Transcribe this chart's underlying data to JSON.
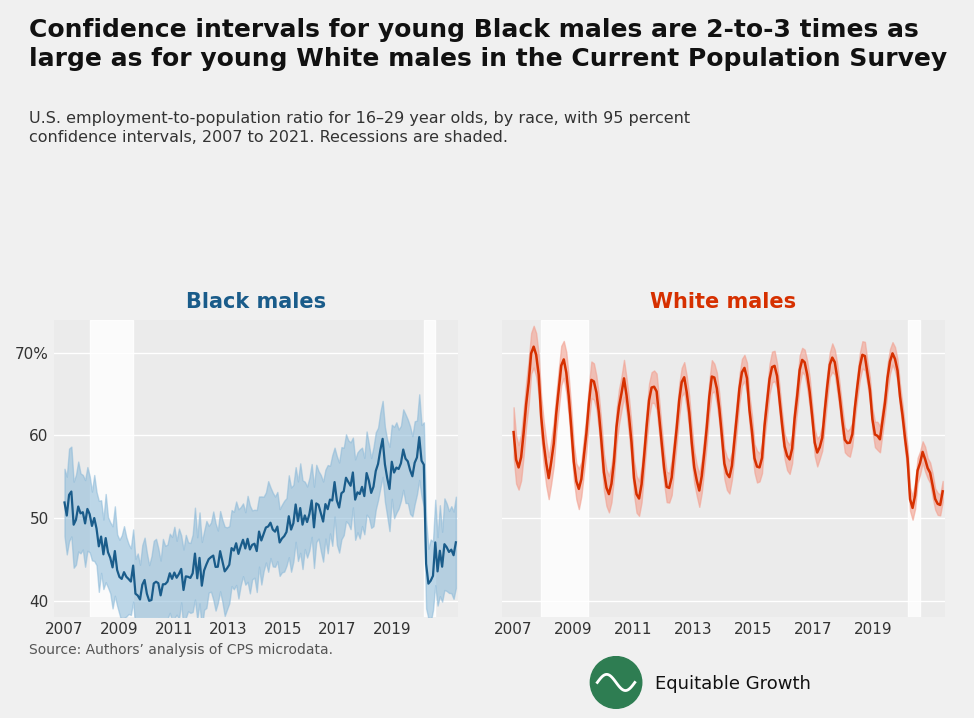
{
  "title_line1": "Confidence intervals for young Black males are 2-to-3 times as",
  "title_line2": "large as for young White males in the Current Population Survey",
  "subtitle": "U.S. employment-to-population ratio for 16–29 year olds, by race, with 95 percent\nconfidence intervals, 2007 to 2021. Recessions are shaded.",
  "source": "Source: Authors’ analysis of CPS microdata.",
  "bg_color": "#f0f0f0",
  "plot_bg": "#ebebeb",
  "black_line_color": "#1a5c8a",
  "black_ci_color": "#89b8d8",
  "white_line_color": "#d63000",
  "white_ci_color": "#f2a090",
  "recession_color": "#ffffff",
  "recession_alpha": 0.85,
  "rec1_start": 2007.92,
  "rec1_end": 2009.5,
  "rec2_start": 2020.17,
  "rec2_end": 2020.58,
  "ylim": [
    38,
    74
  ],
  "yticks": [
    40,
    50,
    60,
    70
  ],
  "xticks": [
    2007,
    2009,
    2011,
    2013,
    2015,
    2017,
    2019
  ],
  "xlim_left": [
    2006.6,
    2021.4
  ],
  "xlim_right": [
    2006.6,
    2021.4
  ],
  "title_fs": 18,
  "subtitle_fs": 11.5,
  "tick_fs": 11,
  "panel_label_fs": 15,
  "source_fs": 10,
  "brand_fs": 13
}
